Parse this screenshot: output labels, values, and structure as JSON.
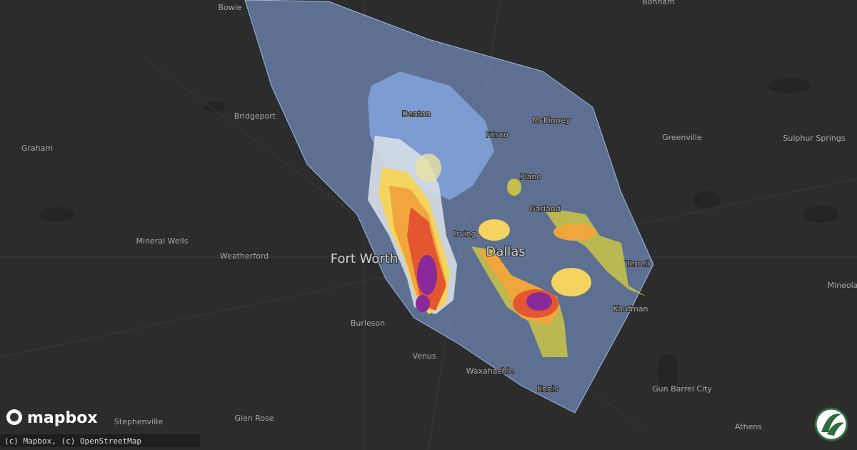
{
  "map": {
    "cities": [
      {
        "label": "Bowie"
      },
      {
        "label": "Bonham"
      },
      {
        "label": "Bridgeport"
      },
      {
        "label": "Denton"
      },
      {
        "label": "McKinney"
      },
      {
        "label": "Frisco"
      },
      {
        "label": "Graham"
      },
      {
        "label": "Greenville"
      },
      {
        "label": "Sulphur Springs"
      },
      {
        "label": "Plano"
      },
      {
        "label": "Garland"
      },
      {
        "label": "Mineral Wells"
      },
      {
        "label": "Irving"
      },
      {
        "label": "Weatherford"
      },
      {
        "label": "Fort Worth"
      },
      {
        "label": "Dallas"
      },
      {
        "label": "Terrell"
      },
      {
        "label": "Mineola"
      },
      {
        "label": "Kaufman"
      },
      {
        "label": "Burleson"
      },
      {
        "label": "Venus"
      },
      {
        "label": "Waxahachie"
      },
      {
        "label": "Ennis"
      },
      {
        "label": "Gun Barrel City"
      },
      {
        "label": "Stephenville"
      },
      {
        "label": "Glen Rose"
      },
      {
        "label": "Athens"
      }
    ],
    "logo": "mapbox",
    "attribution": "(c) Mapbox, (c) OpenStreetMap"
  }
}
